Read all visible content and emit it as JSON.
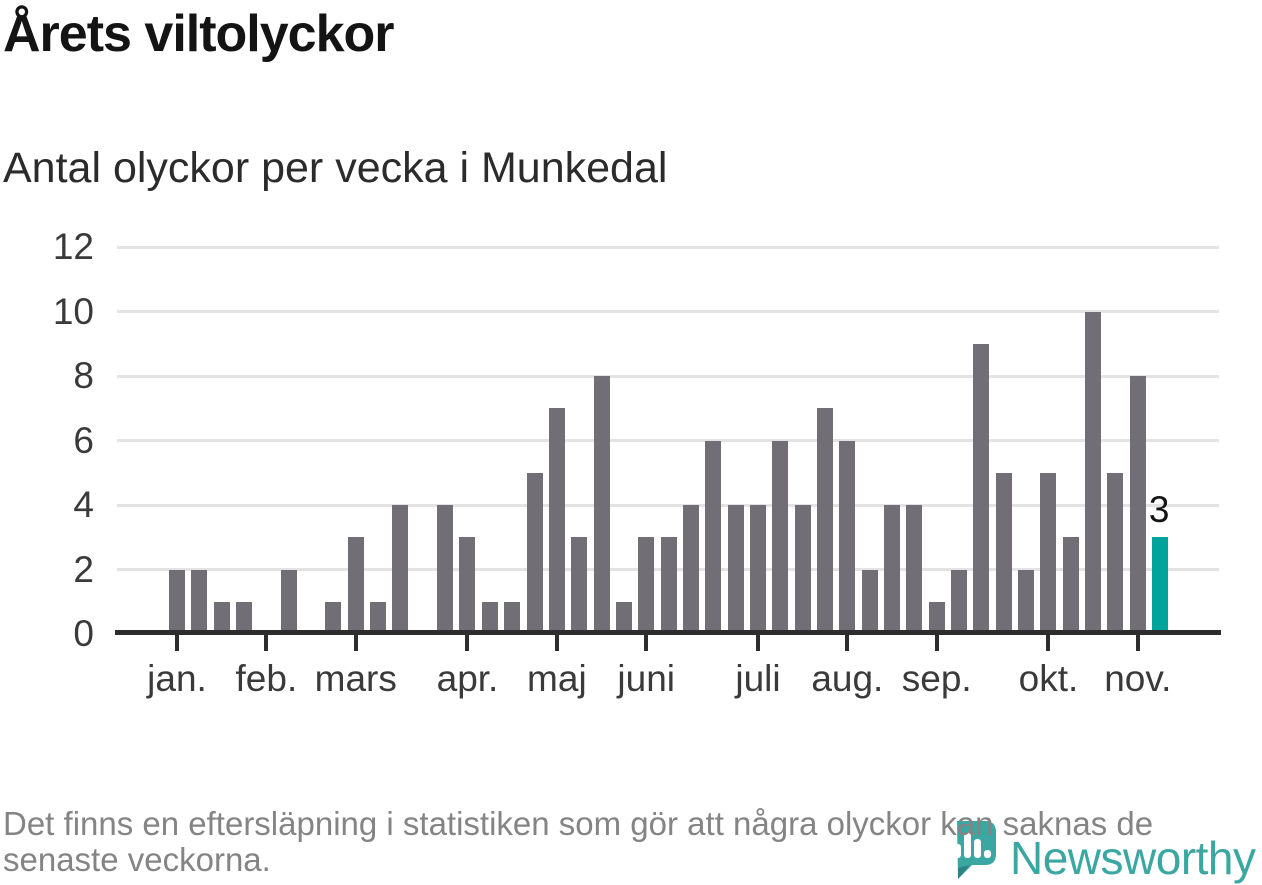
{
  "title": "Årets viltolyckor",
  "subtitle": "Antal olyckor per vecka i Munkedal",
  "footnote": {
    "line1": "Det finns en eftersläpning i statistiken som gör att några olyckor kan saknas de",
    "line2": "senaste veckorna."
  },
  "logo": {
    "brand": "Newsworthy"
  },
  "colors": {
    "bar": "#726e76",
    "highlight": "#00a49a",
    "axis": "#2d2d2d",
    "grid": "#e3e3e3",
    "tick_text": "#3a3a3a",
    "title_text": "#141414",
    "muted_text": "#848484",
    "brand_teal": "#3ba7a2"
  },
  "chart_data": {
    "type": "bar",
    "title": "Årets viltolyckor",
    "subtitle": "Antal olyckor per vecka i Munkedal",
    "xlabel": "",
    "ylabel": "",
    "x_unit": "week of year (1–45)",
    "values": [
      2,
      2,
      1,
      1,
      0,
      2,
      0,
      1,
      3,
      1,
      4,
      0,
      4,
      3,
      1,
      1,
      5,
      7,
      3,
      8,
      1,
      3,
      3,
      4,
      6,
      4,
      4,
      6,
      4,
      7,
      6,
      2,
      4,
      4,
      1,
      2,
      9,
      5,
      2,
      5,
      3,
      10,
      5,
      8,
      3
    ],
    "highlight_index": 44,
    "highlight_label": "3",
    "ylim": [
      0,
      12
    ],
    "yticks": [
      0,
      2,
      4,
      6,
      8,
      10,
      12
    ],
    "grid": true,
    "legend": false,
    "month_ticks": [
      {
        "label": "jan.",
        "week": 0
      },
      {
        "label": "feb.",
        "week": 4
      },
      {
        "label": "mars",
        "week": 8
      },
      {
        "label": "apr.",
        "week": 13
      },
      {
        "label": "maj",
        "week": 17
      },
      {
        "label": "juni",
        "week": 21
      },
      {
        "label": "juli",
        "week": 26
      },
      {
        "label": "aug.",
        "week": 30
      },
      {
        "label": "sep.",
        "week": 34
      },
      {
        "label": "okt.",
        "week": 39
      },
      {
        "label": "nov.",
        "week": 43
      }
    ]
  }
}
